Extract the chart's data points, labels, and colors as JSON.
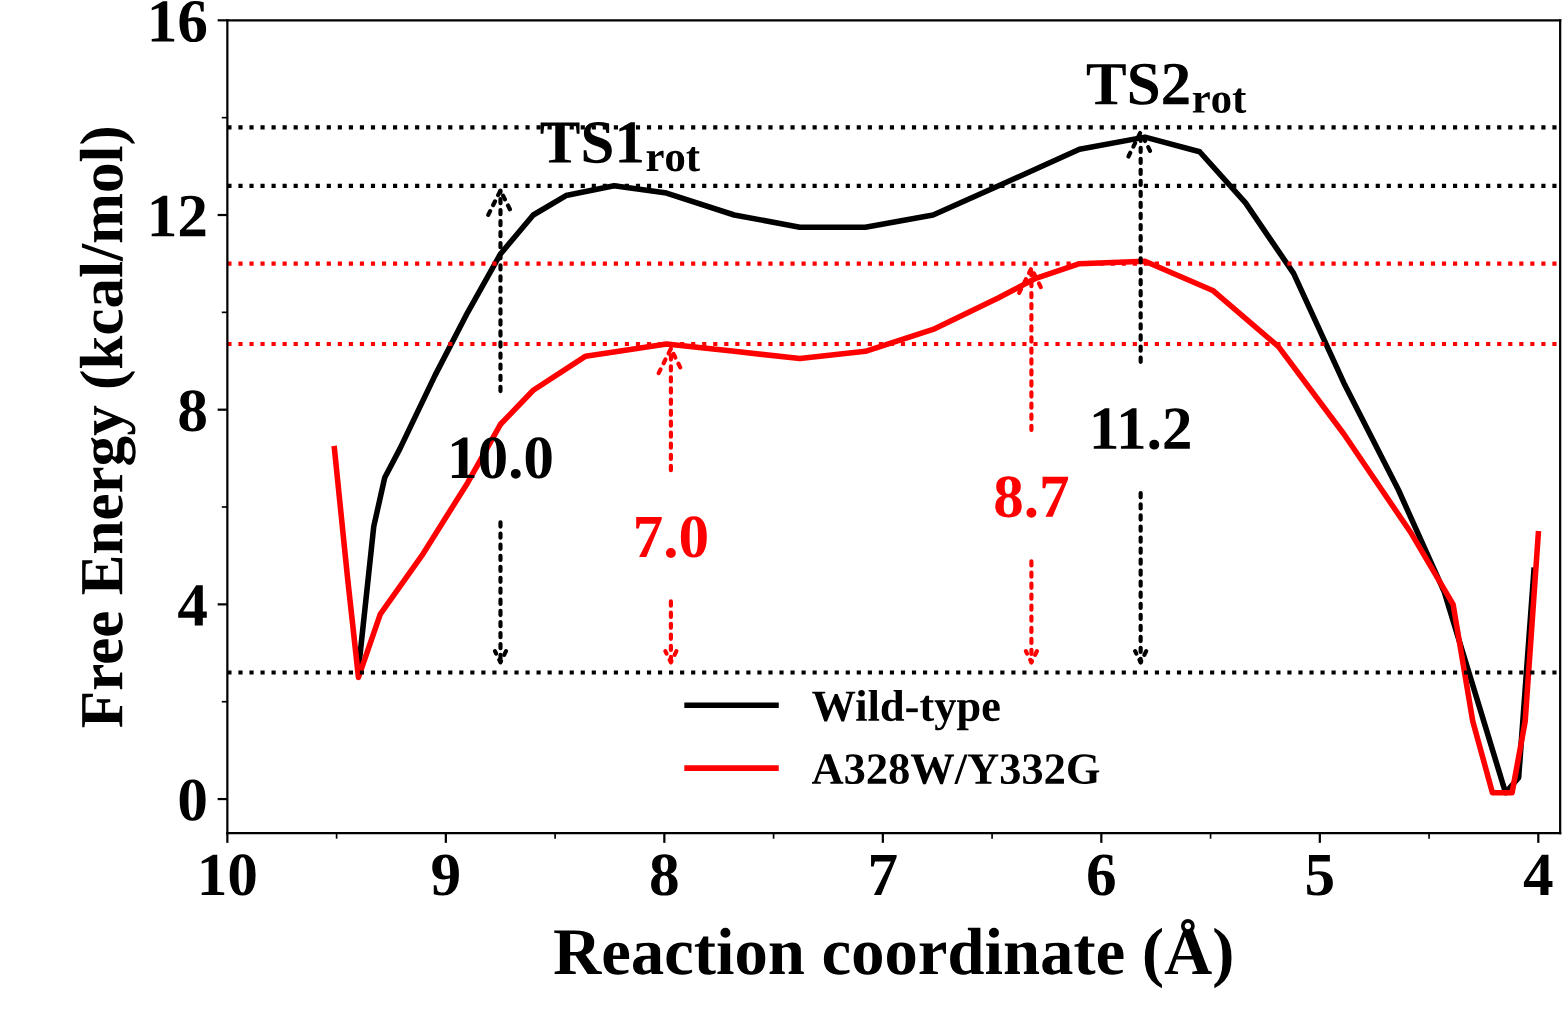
{
  "chart_data": {
    "type": "line",
    "xlabel": "Reaction coordinate (Å)",
    "ylabel": "Free Energy (kcal/mol)",
    "xlim": [
      10,
      3.9
    ],
    "xticks": [
      10,
      9,
      8,
      7,
      6,
      5,
      4
    ],
    "ylim": [
      -0.7,
      16
    ],
    "yticks": [
      0,
      4,
      8,
      12,
      16
    ],
    "grid": false,
    "legend": "bottom",
    "line_style": "solid",
    "marker": "none",
    "series": [
      {
        "name": "Wild-type",
        "color": "#000000",
        "x": [
          9.4,
          9.33,
          9.28,
          9.21,
          9.05,
          8.9,
          8.75,
          8.6,
          8.45,
          8.23,
          7.99,
          7.68,
          7.38,
          7.08,
          6.77,
          6.47,
          6.1,
          5.8,
          5.55,
          5.34,
          5.12,
          4.89,
          4.64,
          4.43,
          4.27,
          4.15,
          4.09,
          4.02
        ],
        "values": [
          2.66,
          5.6,
          6.6,
          7.2,
          8.7,
          10.0,
          11.2,
          12.0,
          12.4,
          12.6,
          12.45,
          12.0,
          11.75,
          11.75,
          12.0,
          12.6,
          13.35,
          13.6,
          13.3,
          12.25,
          10.8,
          8.55,
          6.35,
          4.25,
          1.9,
          0.13,
          0.44,
          4.7
        ]
      },
      {
        "name": "A328W/Y332G",
        "color": "#ff0000",
        "x": [
          9.51,
          9.45,
          9.4,
          9.3,
          9.11,
          8.9,
          8.75,
          8.6,
          8.36,
          7.99,
          7.68,
          7.38,
          7.08,
          6.77,
          6.47,
          6.3,
          6.1,
          5.8,
          5.49,
          5.19,
          4.89,
          4.58,
          4.39,
          4.3,
          4.21,
          4.12,
          4.06,
          4.0
        ],
        "values": [
          7.2,
          4.55,
          2.5,
          3.8,
          5.0,
          6.5,
          7.7,
          8.4,
          9.1,
          9.35,
          9.2,
          9.05,
          9.2,
          9.65,
          10.3,
          10.7,
          11.0,
          11.05,
          10.45,
          9.3,
          7.5,
          5.45,
          4.0,
          1.6,
          0.13,
          0.13,
          1.6,
          5.45
        ]
      }
    ],
    "ref_lines": [
      {
        "axis": "y",
        "value": 2.6,
        "color": "#000000",
        "line_style": "dotted"
      },
      {
        "axis": "y",
        "value": 12.6,
        "color": "#000000",
        "line_style": "dotted"
      },
      {
        "axis": "y",
        "value": 13.8,
        "color": "#000000",
        "line_style": "dotted"
      },
      {
        "axis": "y",
        "value": 9.35,
        "color": "#ff0000",
        "line_style": "dotted"
      },
      {
        "axis": "y",
        "value": 11.0,
        "color": "#ff0000",
        "line_style": "dotted"
      }
    ],
    "annotations": [
      {
        "text": "10.0",
        "x": 8.75,
        "y": 12.6
      },
      {
        "text": "7.0",
        "x": 7.97,
        "y": 9.35
      },
      {
        "text": "8.7",
        "x": 6.32,
        "y": 11.0
      },
      {
        "text": "11.2",
        "x": 5.82,
        "y": 13.8
      },
      {
        "text": "TS1$_{rot}$",
        "x": 8.2,
        "y": 12.6
      },
      {
        "text": "TS2$_{rot}$",
        "x": 5.7,
        "y": 13.8
      }
    ]
  }
}
